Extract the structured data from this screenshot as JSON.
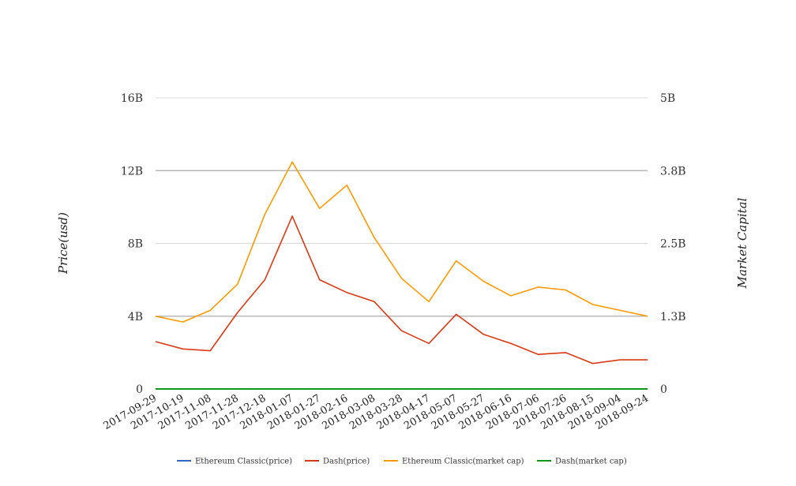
{
  "chart_data": {
    "type": "line",
    "x": [
      "2017-09-29",
      "2017-10-19",
      "2017-11-08",
      "2017-11-28",
      "2017-12-18",
      "2018-01-07",
      "2018-01-27",
      "2018-02-16",
      "2018-03-08",
      "2018-03-28",
      "2018-04-17",
      "2018-05-07",
      "2018-05-27",
      "2018-06-16",
      "2018-07-06",
      "2018-07-26",
      "2018-08-15",
      "2018-09-04",
      "2018-09-24"
    ],
    "ylabel": "Price(usd)",
    "y2label": "Market Capital",
    "y_ticks": [
      "0",
      "4B",
      "8B",
      "12B",
      "16B"
    ],
    "y2_ticks": [
      "0",
      "1.3B",
      "2.5B",
      "3.8B",
      "5B"
    ],
    "ylim": [
      0,
      16000000000
    ],
    "y2lim": [
      0,
      5000000000
    ],
    "grid": true,
    "legend_position": "bottom",
    "series": [
      {
        "name": "Ethereum Classic(price)",
        "axis": "left",
        "color": "#3366cc",
        "values": [
          12,
          11,
          11,
          20,
          32,
          28,
          30,
          28,
          19,
          16,
          14,
          18,
          16,
          15,
          16,
          15,
          12,
          11,
          10
        ]
      },
      {
        "name": "Dash(price)",
        "axis": "left",
        "color": "#dc3912",
        "values": [
          2600000000,
          2200000000,
          2100000000,
          4200000000,
          6000000000,
          9500000000,
          6000000000,
          5300000000,
          4800000000,
          3200000000,
          2500000000,
          4100000000,
          3000000000,
          2500000000,
          1900000000,
          2000000000,
          1400000000,
          1600000000,
          1600000000
        ]
      },
      {
        "name": "Ethereum Classic(market cap)",
        "axis": "right",
        "color": "#ff9900",
        "values": [
          1250000000,
          1150000000,
          1350000000,
          1800000000,
          3000000000,
          3900000000,
          3100000000,
          3500000000,
          2600000000,
          1900000000,
          1500000000,
          2200000000,
          1850000000,
          1600000000,
          1750000000,
          1700000000,
          1450000000,
          1350000000,
          1250000000
        ]
      },
      {
        "name": "Dash(market cap)",
        "axis": "right",
        "color": "#109618",
        "values": [
          20,
          20,
          20,
          20,
          20,
          20,
          20,
          20,
          20,
          20,
          20,
          20,
          20,
          20,
          20,
          20,
          20,
          20,
          20
        ]
      }
    ]
  }
}
